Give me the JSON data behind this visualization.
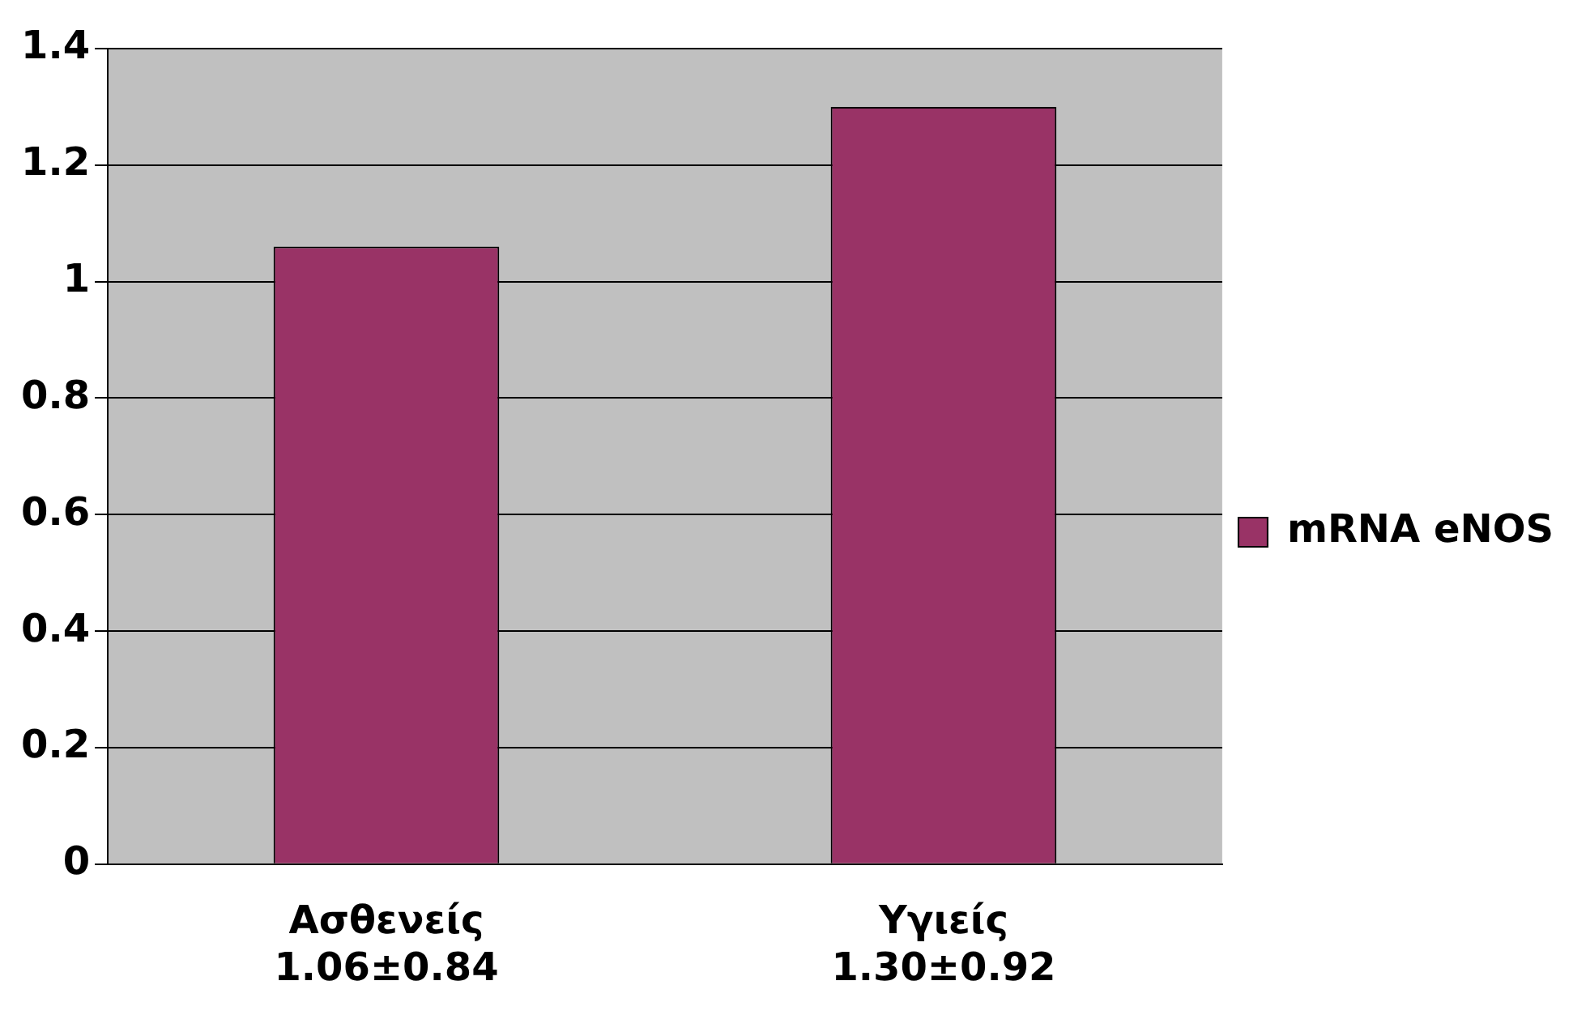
{
  "chart_data": {
    "type": "bar",
    "categories": [
      "Ασθενείς\n1.06±0.84",
      "Υγιείς\n1.30±0.92"
    ],
    "series": [
      {
        "name": "mRNA eNOS",
        "color": "#993366",
        "values": [
          1.06,
          1.3
        ]
      }
    ],
    "ylim": [
      0,
      1.4
    ],
    "yticks": [
      0,
      0.2,
      0.4,
      0.6,
      0.8,
      1,
      1.2,
      1.4
    ],
    "grid": "y",
    "legend": "right"
  }
}
